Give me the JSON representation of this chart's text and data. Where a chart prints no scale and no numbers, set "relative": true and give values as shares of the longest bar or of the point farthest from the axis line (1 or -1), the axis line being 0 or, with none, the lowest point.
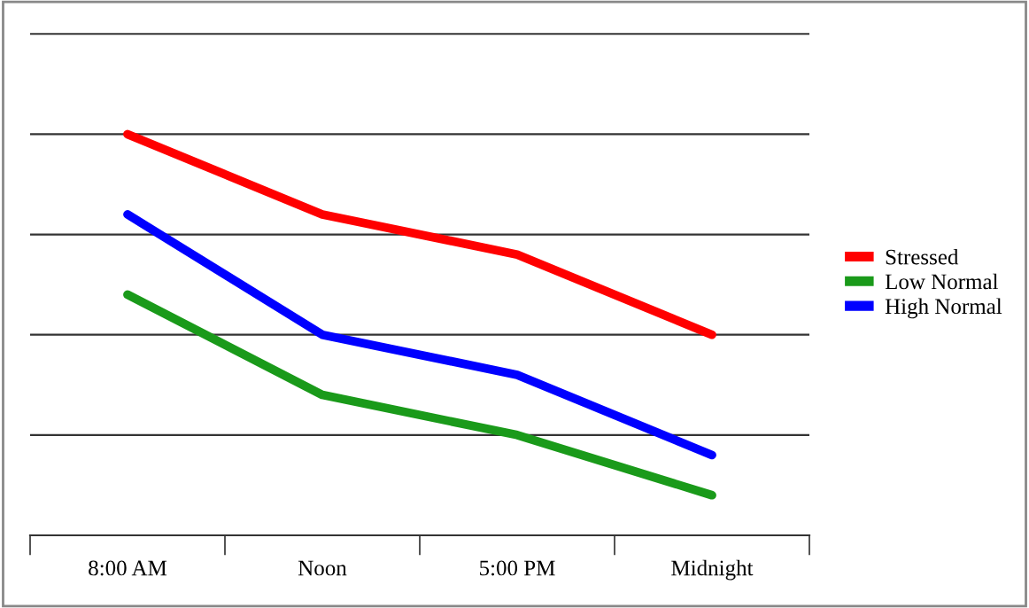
{
  "chart_data": {
    "type": "line",
    "relative": true,
    "categories": [
      "8:00 AM",
      "Noon",
      "5:00 PM",
      "Midnight"
    ],
    "series": [
      {
        "name": "Stressed",
        "color": "#ff0000",
        "values": [
          1.0,
          0.8,
          0.7,
          0.5
        ]
      },
      {
        "name": "Low Normal",
        "color": "#1a9a1a",
        "values": [
          0.6,
          0.35,
          0.25,
          0.1
        ]
      },
      {
        "name": "High Normal",
        "color": "#0000ff",
        "values": [
          0.8,
          0.5,
          0.4,
          0.2
        ]
      }
    ],
    "grid": "y",
    "legend": "right",
    "marker": "none",
    "line_style": "solid"
  }
}
